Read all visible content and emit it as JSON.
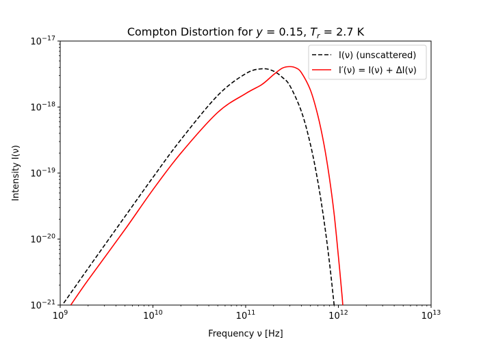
{
  "chart_data": {
    "type": "line",
    "title": "Compton Distortion for y = 0.15, T_r = 2.7 K",
    "title_parts": {
      "prefix": "Compton Distortion for ",
      "y_symbol": "y",
      "y_value": " = 0.15, ",
      "t_symbol": "T",
      "t_sub": "r",
      "t_value": " = 2.7 K"
    },
    "xlabel": "Frequency ν [Hz]",
    "ylabel": "Intensity I(ν)",
    "xscale": "log",
    "yscale": "log",
    "xlim": [
      1000000000.0,
      10000000000000.0
    ],
    "ylim": [
      1e-21,
      1e-17
    ],
    "grid": false,
    "legend_position": "top-right",
    "x_ticks": [
      {
        "base": "10",
        "exp": "9",
        "value": 1000000000.0
      },
      {
        "base": "10",
        "exp": "10",
        "value": 10000000000.0
      },
      {
        "base": "10",
        "exp": "11",
        "value": 100000000000.0
      },
      {
        "base": "10",
        "exp": "12",
        "value": 1000000000000.0
      },
      {
        "base": "10",
        "exp": "13",
        "value": 10000000000000.0
      }
    ],
    "y_ticks": [
      {
        "base": "10",
        "exp": "−21",
        "value": 1e-21
      },
      {
        "base": "10",
        "exp": "−20",
        "value": 1e-20
      },
      {
        "base": "10",
        "exp": "−19",
        "value": 1e-19
      },
      {
        "base": "10",
        "exp": "−18",
        "value": 1e-18
      },
      {
        "base": "10",
        "exp": "−17",
        "value": 1e-17
      }
    ],
    "series": [
      {
        "name": "I(ν) (unscattered)",
        "color": "#000000",
        "style": "dashed",
        "x": [
          1000000000.0,
          2000000000.0,
          5000000000.0,
          10000000000.0,
          20000000000.0,
          50000000000.0,
          100000000000.0,
          150000000000.0,
          200000000000.0,
          250000000000.0,
          300000000000.0,
          400000000000.0,
          500000000000.0,
          600000000000.0,
          700000000000.0,
          800000000000.0,
          900000000000.0,
          950000000000.0
        ],
        "y": [
          9e-22,
          3.6e-21,
          2.2e-20,
          8.6e-20,
          3.2e-19,
          1.5e-18,
          3.2e-18,
          3.8e-18,
          3.5e-18,
          2.8e-18,
          2.1e-18,
          8.5e-19,
          2.7e-19,
          7.5e-20,
          1.9e-20,
          4.5e-21,
          1e-21,
          4.7e-22
        ]
      },
      {
        "name": "I′(ν) = I(ν) + ΔI(ν)",
        "color": "#ff0000",
        "style": "solid",
        "x": [
          1300000000.0,
          2000000000.0,
          5000000000.0,
          10000000000.0,
          20000000000.0,
          50000000000.0,
          100000000000.0,
          150000000000.0,
          200000000000.0,
          250000000000.0,
          300000000000.0,
          350000000000.0,
          400000000000.0,
          500000000000.0,
          600000000000.0,
          700000000000.0,
          800000000000.0,
          900000000000.0,
          1000000000000.0,
          1100000000000.0,
          1150000000000.0
        ],
        "y": [
          1e-21,
          2.4e-21,
          1.4e-20,
          5.6e-20,
          2e-19,
          8.3e-19,
          1.6e-18,
          2.2e-18,
          3.1e-18,
          3.9e-18,
          4.1e-18,
          3.9e-18,
          3.3e-18,
          1.8e-18,
          7.5e-19,
          2.7e-19,
          8.5e-20,
          2.4e-20,
          5.5e-21,
          1.3e-21,
          5e-22
        ]
      }
    ]
  }
}
